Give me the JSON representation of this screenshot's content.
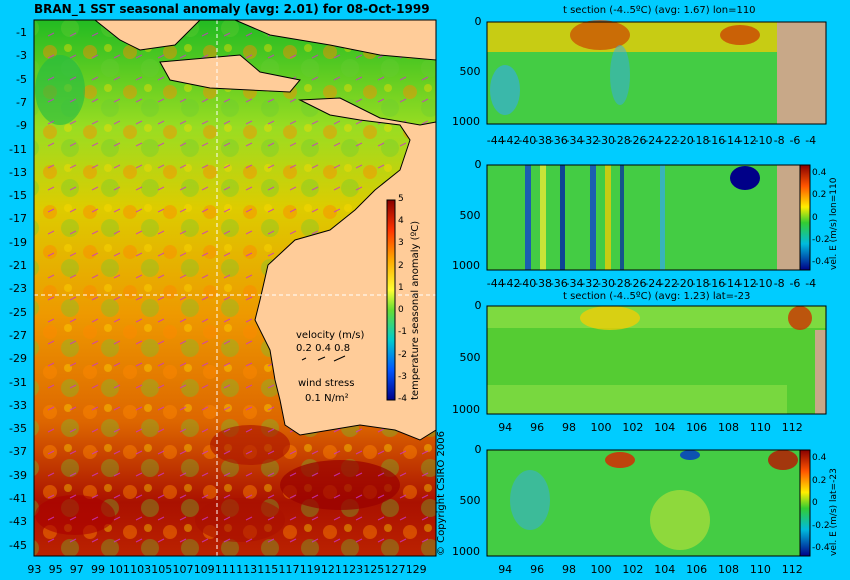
{
  "main_title": "BRAN_1  SST seasonal anomaly (avg: 2.01) for 08-Oct-1999",
  "map": {
    "lat_labels": [
      "-1",
      "-3",
      "-5",
      "-7",
      "-9",
      "-11",
      "-13",
      "-15",
      "-17",
      "-19",
      "-21",
      "-23",
      "-25",
      "-27",
      "-29",
      "-31",
      "-33",
      "-35",
      "-37",
      "-39",
      "-41",
      "-43",
      "-45"
    ],
    "lon_labels": [
      "93",
      "95",
      "97",
      "99",
      "101",
      "103",
      "105",
      "107",
      "109",
      "111",
      "113",
      "115",
      "117",
      "119",
      "121",
      "123",
      "125",
      "127",
      "129"
    ],
    "colorbar_label": "temperature seasonal anomaly (ºC)",
    "colorbar_ticks": [
      "5",
      "4",
      "3",
      "2",
      "1",
      "0",
      "-1",
      "-2",
      "-3",
      "-4"
    ],
    "velocity_title": "velocity (m/s)",
    "velocity_scale": "0.2 0.4 0.8",
    "wind_title": "wind stress",
    "wind_scale": "0.1 N/m²",
    "section_lat": -23,
    "section_lon": 110
  },
  "copyright": "© Copyright CSIRO 2006",
  "panels": {
    "p1": {
      "title": "t section (-4..5ºC) (avg: 1.67) lon=110",
      "x_ticks": [
        "-44",
        "-42",
        "-40",
        "-38",
        "-36",
        "-34",
        "-32",
        "-30",
        "-28",
        "-26",
        "-24",
        "-22",
        "-20",
        "-18",
        "-16",
        "-14",
        "-12",
        "-10",
        "-8",
        "-6",
        "-4"
      ],
      "y_ticks": [
        "0",
        "500",
        "1000"
      ]
    },
    "p2": {
      "x_ticks": [
        "-44",
        "-42",
        "-40",
        "-38",
        "-36",
        "-34",
        "-32",
        "-30",
        "-28",
        "-26",
        "-24",
        "-22",
        "-20",
        "-18",
        "-16",
        "-14",
        "-12",
        "-10",
        "-8",
        "-6",
        "-4"
      ],
      "y_ticks": [
        "0",
        "500",
        "1000"
      ],
      "colorbar_label": "vel. E (m/s) lon=110",
      "colorbar_ticks": [
        "0.4",
        "0.2",
        "0",
        "-0.2",
        "-0.4"
      ]
    },
    "p3": {
      "title": "t section (-4..5ºC) (avg: 1.23) lat=-23",
      "x_ticks": [
        "94",
        "96",
        "98",
        "100",
        "102",
        "104",
        "106",
        "108",
        "110",
        "112"
      ],
      "y_ticks": [
        "0",
        "500",
        "1000"
      ]
    },
    "p4": {
      "x_ticks": [
        "94",
        "96",
        "98",
        "100",
        "102",
        "104",
        "106",
        "108",
        "110",
        "112"
      ],
      "y_ticks": [
        "0",
        "500",
        "1000"
      ],
      "colorbar_label": "vel. E (m/s) lat=-23",
      "colorbar_ticks": [
        "0.4",
        "0.2",
        "0",
        "-0.2",
        "-0.4"
      ]
    }
  },
  "colors": {
    "background": "#00ccff",
    "land": "#ffcc99",
    "section_land": "#c8a888"
  }
}
